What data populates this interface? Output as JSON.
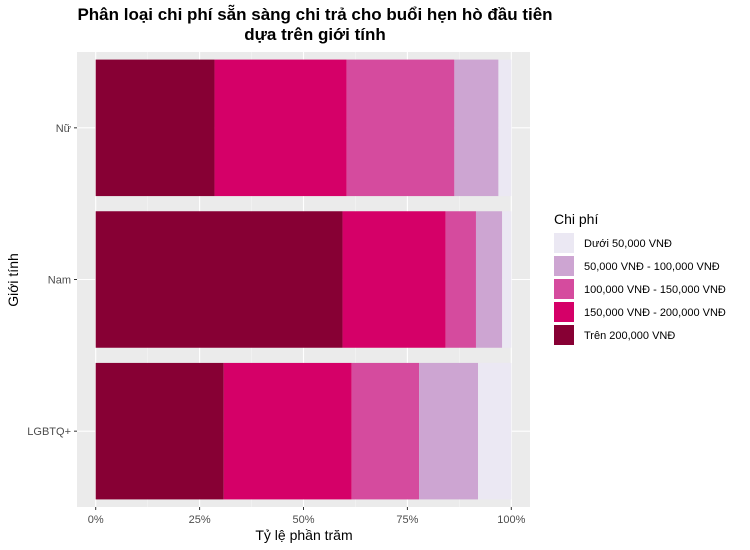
{
  "chart_data": {
    "type": "bar",
    "orientation": "horizontal",
    "stacked": true,
    "title": "Phân loại chi phí sẵn sàng chi trả cho buổi hẹn hò đầu tiên",
    "subtitle": "dựa trên giới tính",
    "xlabel": "Tỷ lệ phần trăm",
    "ylabel": "Giới tính",
    "xlim": [
      0,
      100
    ],
    "x_ticks": [
      "0%",
      "25%",
      "50%",
      "75%",
      "100%"
    ],
    "categories": [
      "Nữ",
      "Nam",
      "LGBTQ+"
    ],
    "legend_title": "Chi phí",
    "legend_position": "right",
    "grid": true,
    "series": [
      {
        "name": "Trên 200,000 VNĐ",
        "color": "#870034",
        "values": [
          28.6,
          59.4,
          30.8
        ]
      },
      {
        "name": "150,000 VNĐ - 200,000 VNĐ",
        "color": "#d50068",
        "values": [
          31.8,
          24.8,
          30.8
        ]
      },
      {
        "name": "100,000 VNĐ - 150,000 VNĐ",
        "color": "#d54b9e",
        "values": [
          25.9,
          7.3,
          16.2
        ]
      },
      {
        "name": "50,000 VNĐ - 100,000 VNĐ",
        "color": "#cda5d2",
        "values": [
          10.6,
          6.3,
          14.2
        ]
      },
      {
        "name": "Dưới 50,000 VNĐ",
        "color": "#ebe8f3",
        "values": [
          3.1,
          2.2,
          8.0
        ]
      }
    ],
    "legend_order": [
      "Dưới 50,000 VNĐ",
      "50,000 VNĐ - 100,000 VNĐ",
      "100,000 VNĐ - 150,000 VNĐ",
      "150,000 VNĐ - 200,000 VNĐ",
      "Trên 200,000 VNĐ"
    ],
    "colors": {
      "panel": "#ebebeb",
      "grid_major": "#ffffff",
      "grid_minor": "#f5f5f5"
    }
  }
}
